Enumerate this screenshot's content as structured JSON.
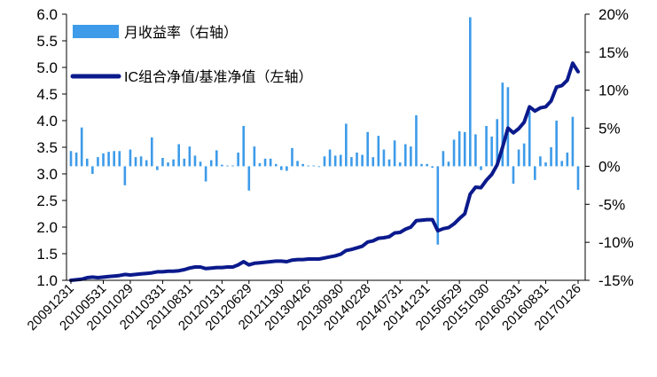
{
  "chart_data": {
    "type": "bar+line",
    "title": "",
    "legend_placement": "top-left",
    "grid": false,
    "axes": {
      "y_left": {
        "min": 1.0,
        "max": 6.0,
        "ticks": [
          "1.0",
          "1.5",
          "2.0",
          "2.5",
          "3.0",
          "3.5",
          "4.0",
          "4.5",
          "5.0",
          "5.5",
          "6.0"
        ]
      },
      "y_right": {
        "min": -15,
        "max": 20,
        "unit": "%",
        "ticks": [
          "-15%",
          "-10%",
          "-5%",
          "0%",
          "5%",
          "10%",
          "15%",
          "20%"
        ]
      },
      "x_ticks": [
        "20091231",
        "20100531",
        "20101029",
        "20110331",
        "20110831",
        "20120131",
        "20120629",
        "20121130",
        "20130426",
        "20130930",
        "20140228",
        "20140731",
        "20141231",
        "20150529",
        "20151030",
        "20160331",
        "20160831",
        "20170126"
      ]
    },
    "series": [
      {
        "name": "月收益率（右轴）",
        "type": "bar",
        "axis": "right",
        "color": "#3D9BE9",
        "values": [
          2.0,
          1.8,
          5.1,
          1.0,
          -1.0,
          1.2,
          1.7,
          1.9,
          2.0,
          2.0,
          -2.5,
          2.2,
          1.2,
          1.3,
          0.8,
          3.8,
          -0.5,
          1.1,
          0.5,
          0.9,
          2.9,
          1.0,
          2.6,
          1.4,
          0.6,
          -2.0,
          0.8,
          2.1,
          0.2,
          0.1,
          0.1,
          1.8,
          5.3,
          -3.2,
          2.6,
          0.4,
          1.0,
          1.0,
          0.3,
          -0.5,
          -0.6,
          2.4,
          0.7,
          0.3,
          0.1,
          0.1,
          -0.1,
          1.3,
          2.2,
          1.4,
          1.5,
          5.6,
          1.2,
          1.8,
          1.5,
          4.5,
          1.2,
          4.0,
          2.2,
          0.9,
          3.4,
          0.5,
          2.9,
          2.6,
          6.7,
          0.3,
          0.3,
          -0.2,
          -10.3,
          2.0,
          0.6,
          3.5,
          4.6,
          4.5,
          19.6,
          4.2,
          -0.5,
          5.3,
          3.9,
          6.2,
          11.0,
          10.4,
          -2.3,
          2.2,
          3.0,
          7.2,
          -1.8,
          1.3,
          0.5,
          2.5,
          6.0,
          0.7,
          1.8,
          6.5,
          -3.1
        ]
      },
      {
        "name": "IC组合净值/基准净值（左轴）",
        "type": "line",
        "axis": "left",
        "color": "#0B1A8C",
        "values": [
          1.0,
          1.01,
          1.02,
          1.05,
          1.06,
          1.05,
          1.06,
          1.07,
          1.08,
          1.09,
          1.11,
          1.1,
          1.11,
          1.12,
          1.13,
          1.14,
          1.16,
          1.16,
          1.17,
          1.17,
          1.18,
          1.2,
          1.23,
          1.25,
          1.25,
          1.22,
          1.23,
          1.24,
          1.24,
          1.25,
          1.25,
          1.29,
          1.35,
          1.29,
          1.32,
          1.33,
          1.34,
          1.35,
          1.36,
          1.36,
          1.35,
          1.38,
          1.39,
          1.39,
          1.4,
          1.4,
          1.4,
          1.42,
          1.44,
          1.46,
          1.49,
          1.56,
          1.58,
          1.61,
          1.64,
          1.72,
          1.74,
          1.79,
          1.8,
          1.82,
          1.89,
          1.9,
          1.96,
          2.0,
          2.12,
          2.13,
          2.14,
          2.14,
          1.93,
          1.97,
          1.99,
          2.06,
          2.16,
          2.25,
          2.62,
          2.75,
          2.74,
          2.88,
          2.99,
          3.17,
          3.5,
          3.86,
          3.77,
          3.85,
          3.97,
          4.26,
          4.18,
          4.24,
          4.26,
          4.37,
          4.63,
          4.66,
          4.76,
          5.08,
          4.92
        ]
      }
    ]
  }
}
